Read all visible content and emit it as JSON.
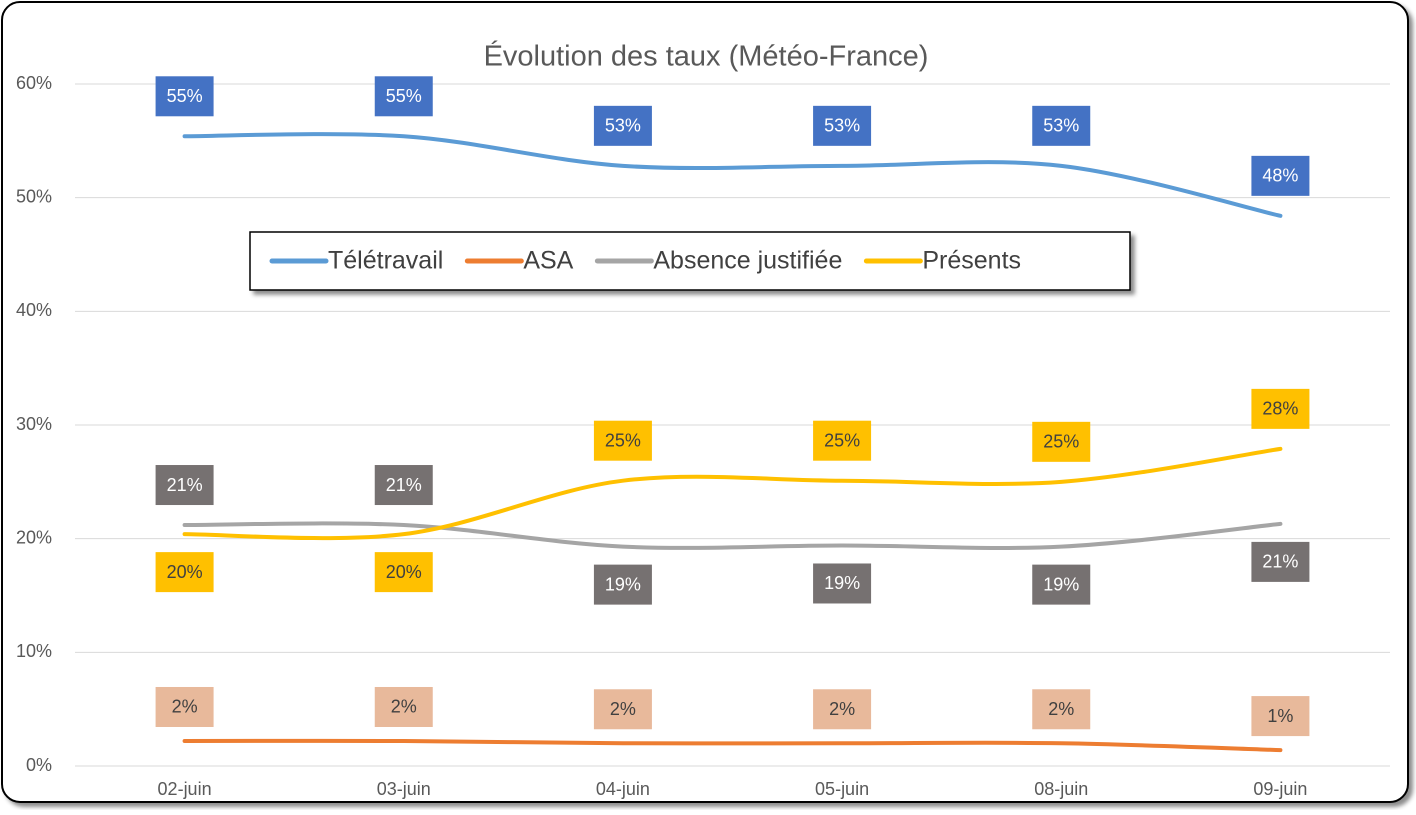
{
  "chart_data": {
    "type": "line",
    "title": "Évolution des taux (Météo-France)",
    "categories": [
      "02-juin",
      "03-juin",
      "04-juin",
      "05-juin",
      "08-juin",
      "09-juin"
    ],
    "series": [
      {
        "name": "Télétravail",
        "color": "#5b9bd5",
        "label_color": "#4472c4",
        "label_text_color": "#ffffff",
        "values": [
          55.4,
          55.4,
          52.8,
          52.8,
          52.8,
          48.4
        ],
        "value_labels": [
          "55%",
          "55%",
          "53%",
          "53%",
          "53%",
          "48%"
        ]
      },
      {
        "name": "ASA",
        "color": "#ed7d31",
        "label_color": "#e8b99b",
        "label_text_color": "#404040",
        "values": [
          2.2,
          2.2,
          2.0,
          2.0,
          2.0,
          1.4
        ],
        "value_labels": [
          "2%",
          "2%",
          "2%",
          "2%",
          "2%",
          "1%"
        ]
      },
      {
        "name": "Absence justifiée",
        "color": "#a5a5a5",
        "label_color": "#767171",
        "label_text_color": "#ffffff",
        "values": [
          21.2,
          21.2,
          19.3,
          19.4,
          19.3,
          21.3
        ],
        "value_labels": [
          "21%",
          "21%",
          "19%",
          "19%",
          "19%",
          "21%"
        ]
      },
      {
        "name": "Présents",
        "color": "#ffc000",
        "label_color": "#ffc000",
        "label_text_color": "#404040",
        "values": [
          20.4,
          20.4,
          25.1,
          25.1,
          25.0,
          27.9
        ],
        "value_labels": [
          "20%",
          "20%",
          "25%",
          "25%",
          "25%",
          "28%"
        ]
      }
    ],
    "ylim": [
      0,
      60
    ],
    "yticks": [
      {
        "value": 0,
        "label": "0%"
      },
      {
        "value": 10,
        "label": "10%"
      },
      {
        "value": 20,
        "label": "20%"
      },
      {
        "value": 30,
        "label": "30%"
      },
      {
        "value": 40,
        "label": "40%"
      },
      {
        "value": 50,
        "label": "50%"
      },
      {
        "value": 60,
        "label": "60%"
      }
    ],
    "grid": true,
    "legend": "top",
    "smooth": true
  }
}
